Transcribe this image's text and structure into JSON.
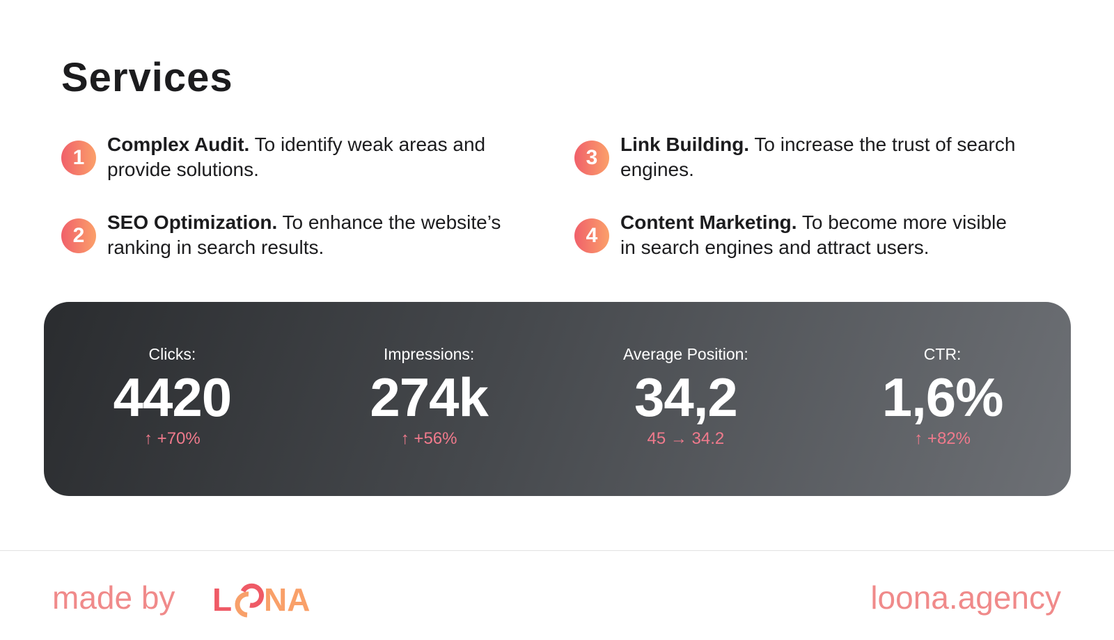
{
  "title": "Services",
  "services": [
    {
      "num": "1",
      "name": "Complex Audit.",
      "desc": " To identify weak areas and provide solutions."
    },
    {
      "num": "2",
      "name": "SEO Optimization.",
      "desc": " To enhance the website’s ranking in search results."
    },
    {
      "num": "3",
      "name": "Link Building.",
      "desc": " To increase the trust of search engines."
    },
    {
      "num": "4",
      "name": "Content Marketing.",
      "desc": " To become more visible in search engines and attract users."
    }
  ],
  "stats": [
    {
      "label": "Clicks:",
      "value": "4420",
      "change": "↑ +70%"
    },
    {
      "label": "Impressions:",
      "value": "274k",
      "change": "↑ +56%"
    },
    {
      "label": "Average Position:",
      "value": "34,2",
      "change": "45 → 34.2"
    },
    {
      "label": "CTR:",
      "value": "1,6%",
      "change": "↑ +82%"
    }
  ],
  "footer": {
    "made_by": "made by",
    "logo": "LOONA",
    "site": "loona.agency"
  },
  "colors": {
    "accent_red": "#f0606a",
    "accent_orange": "#fba06a",
    "change": "#f07a8c"
  }
}
